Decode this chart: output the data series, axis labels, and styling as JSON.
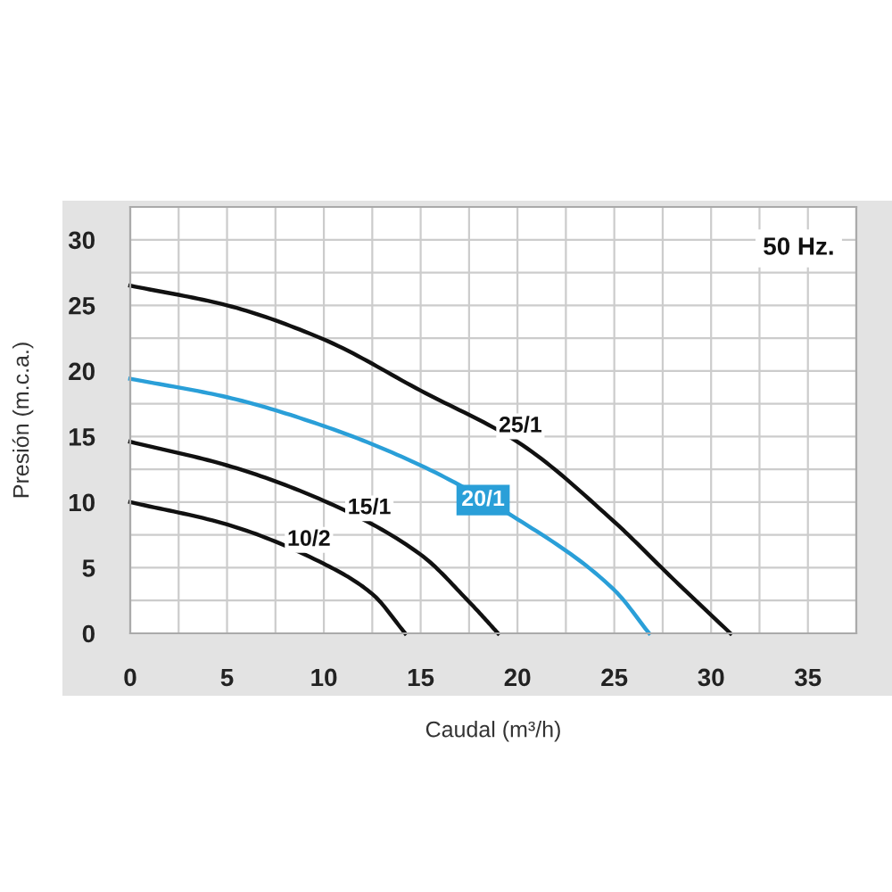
{
  "chart_data": {
    "type": "line",
    "xlabel": "Caudal (m³/h)",
    "ylabel": "Presión (m.c.a.)",
    "xlim": [
      0,
      37.5
    ],
    "ylim": [
      0,
      32.5
    ],
    "xticks": [
      0,
      {
        "value": 2.5,
        "label": null
      },
      5,
      {
        "value": 7.5,
        "label": null
      },
      10,
      {
        "value": 12.5,
        "label": null
      },
      15,
      {
        "value": 17.5,
        "label": null
      },
      20,
      {
        "value": 22.5,
        "label": null
      },
      25,
      {
        "value": 27.5,
        "label": null
      },
      30,
      {
        "value": 32.5,
        "label": null
      },
      35,
      {
        "value": 37.5,
        "label": null
      }
    ],
    "yticks": [
      0,
      {
        "value": 2.5,
        "label": null
      },
      5,
      {
        "value": 7.5,
        "label": null
      },
      10,
      {
        "value": 12.5,
        "label": null
      },
      15,
      {
        "value": 17.5,
        "label": null
      },
      20,
      {
        "value": 22.5,
        "label": null
      },
      25,
      {
        "value": 27.5,
        "label": null
      },
      30,
      {
        "value": 32.5,
        "label": null
      }
    ],
    "grid": true,
    "marker": "none",
    "line_style": "solid",
    "annotations": [
      "50 Hz."
    ],
    "series": [
      {
        "name": "25/1",
        "color": "#111111",
        "x": [
          0,
          5,
          10,
          15,
          20,
          25,
          28,
          31
        ],
        "values": [
          26.5,
          25.0,
          22.4,
          18.5,
          14.6,
          8.5,
          4.2,
          0
        ]
      },
      {
        "name": "20/1",
        "color": "#2a9fd8",
        "x": [
          0,
          5,
          10,
          15,
          20,
          25,
          26.8
        ],
        "values": [
          19.4,
          18.0,
          15.8,
          12.8,
          8.7,
          3.3,
          0
        ]
      },
      {
        "name": "15/1",
        "color": "#111111",
        "x": [
          0,
          5,
          10,
          15,
          17.5,
          19.0
        ],
        "values": [
          14.6,
          12.8,
          10.1,
          6.0,
          2.4,
          0
        ]
      },
      {
        "name": "10/2",
        "color": "#111111",
        "x": [
          0,
          5,
          10,
          12.5,
          14.2
        ],
        "values": [
          10.0,
          8.3,
          5.3,
          3.0,
          0
        ]
      }
    ]
  }
}
